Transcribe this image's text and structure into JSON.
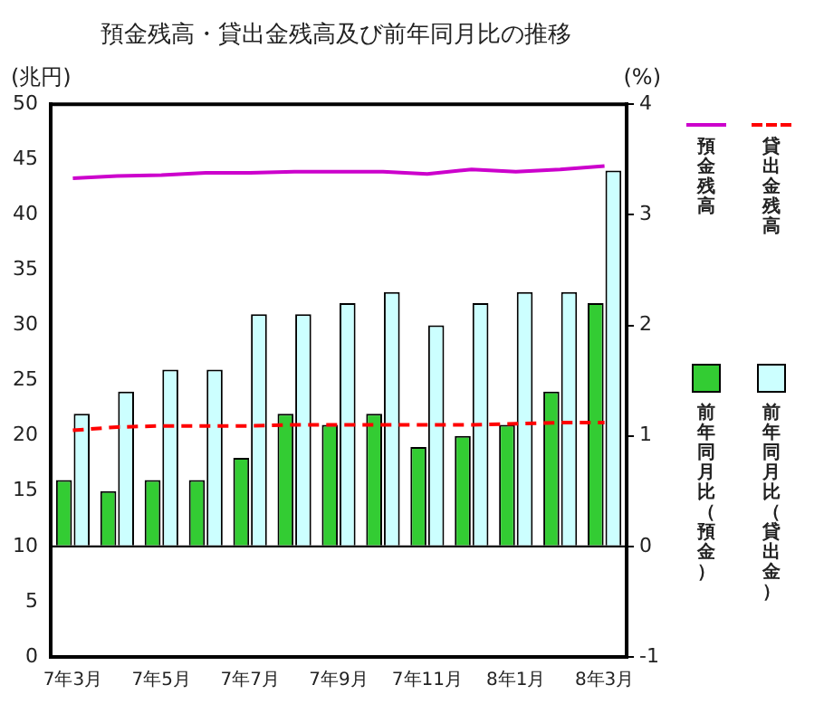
{
  "chart_data": {
    "type": "bar",
    "title": "預金残高・貸出金残高及び前年同月比の推移",
    "ylabel": "(兆円)",
    "y2label": "(%)",
    "categories": [
      "7年3月",
      null,
      "7年5月",
      null,
      "7年7月",
      null,
      "7年9月",
      null,
      "7年11月",
      null,
      "8年1月",
      null,
      "8年3月"
    ],
    "series": [
      {
        "name": "預金残高",
        "type": "line",
        "color": "#cc00cc",
        "line_style": "solid",
        "values": [
          43.3,
          43.5,
          43.6,
          43.8,
          43.8,
          43.9,
          43.9,
          43.9,
          43.7,
          44.1,
          43.9,
          44.1,
          44.4
        ]
      },
      {
        "name": "貸出金残高",
        "type": "line",
        "color": "#ff0000",
        "line_style": "dashed",
        "values": [
          20.5,
          20.8,
          20.9,
          20.9,
          20.9,
          21.0,
          21.0,
          21.0,
          21.0,
          21.0,
          21.1,
          21.2,
          21.2
        ]
      },
      {
        "name": "前年同月比（預金）",
        "axis": "y2",
        "color": "#33cc33",
        "values": [
          0.6,
          0.5,
          0.6,
          0.6,
          0.8,
          1.2,
          1.1,
          1.2,
          0.9,
          1.0,
          1.1,
          1.4,
          2.2
        ]
      },
      {
        "name": "前年同月比（貸出金）",
        "axis": "y2",
        "color": "#ccffff",
        "values": [
          1.2,
          1.4,
          1.6,
          1.6,
          2.1,
          2.1,
          2.2,
          2.3,
          2.0,
          2.2,
          2.3,
          2.3,
          3.4
        ]
      }
    ],
    "ylim": [
      0,
      50
    ],
    "yticks": [
      0,
      5,
      10,
      15,
      20,
      25,
      30,
      35,
      40,
      45,
      50
    ],
    "y2lim": [
      -1,
      4
    ],
    "y2ticks": [
      -1,
      0,
      1,
      2,
      3,
      4
    ],
    "ref_lines": [
      {
        "axis": "y2",
        "value": 0,
        "color": "#000000"
      }
    ],
    "grid": false,
    "legend": "right",
    "marker": "none"
  }
}
